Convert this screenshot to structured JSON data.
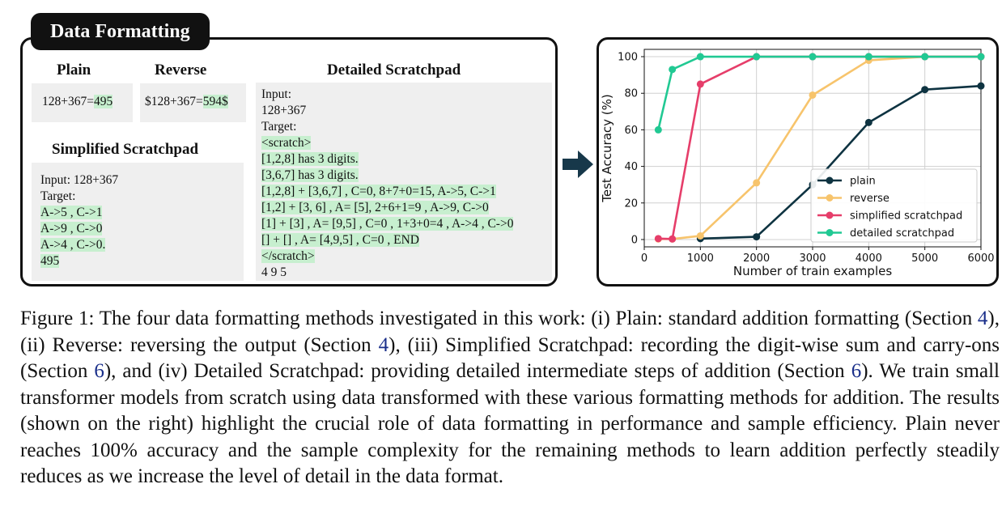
{
  "panel_title": "Data Formatting",
  "formats": {
    "plain": {
      "heading": "Plain",
      "prefix": "128+367=",
      "answer": "495"
    },
    "reverse": {
      "heading": "Reverse",
      "prefix": "$128+367=",
      "answer": "594$"
    },
    "simplified": {
      "heading": "Simplified Scratchpad",
      "lines": [
        "Input: 128+367",
        "Target:"
      ],
      "target_lines": [
        "A->5 , C->1",
        "A->9 , C->0",
        "A->4 , C->0.",
        "495"
      ]
    },
    "detailed": {
      "heading": "Detailed Scratchpad",
      "lines": [
        "Input:",
        "128+367",
        "Target:"
      ],
      "target_lines": [
        "<scratch>",
        "[1,2,8] has 3 digits.",
        "[3,6,7] has 3 digits.",
        "[1,2,8] + [3,6,7] , C=0, 8+7+0=15, A->5, C->1",
        "[1,2] + [3, 6] , A= [5], 2+6+1=9 , A->9, C->0",
        "[1] + [3] , A= [9,5] , C=0 , 1+3+0=4 , A->4 , C->0",
        "[] + [] , A= [4,9,5] , C=0 , END",
        "</scratch>"
      ],
      "final": "4 9 5"
    }
  },
  "chart_data": {
    "type": "line",
    "xlabel": "Number of train examples",
    "ylabel": "Test Accuracy (%)",
    "xlim": [
      0,
      6000
    ],
    "ylim": [
      -4,
      104
    ],
    "xticks": [
      0,
      1000,
      2000,
      3000,
      4000,
      5000,
      6000
    ],
    "yticks": [
      0,
      20,
      40,
      60,
      80,
      100
    ],
    "grid": true,
    "legend_position": "lower-right",
    "series": [
      {
        "name": "plain",
        "color": "#0e3341",
        "markers": true,
        "x": [
          1000,
          2000,
          3000,
          4000,
          5000,
          6000
        ],
        "y": [
          0.5,
          1.5,
          30,
          64,
          82,
          84
        ]
      },
      {
        "name": "reverse",
        "color": "#f7c46c",
        "markers": true,
        "x": [
          250,
          500,
          1000,
          2000,
          3000,
          4000,
          5000,
          6000
        ],
        "y": [
          0.3,
          0.3,
          2,
          31,
          79,
          98,
          100,
          100
        ]
      },
      {
        "name": "simplified scratchpad",
        "color": "#e63e6a",
        "markers": true,
        "x": [
          250,
          500,
          1000,
          2000,
          3000,
          4000,
          5000,
          6000
        ],
        "y": [
          0.5,
          0.3,
          85,
          100,
          100,
          100,
          100,
          100
        ]
      },
      {
        "name": "detailed scratchpad",
        "color": "#21c993",
        "markers": true,
        "x": [
          250,
          500,
          1000,
          2000,
          3000,
          4000,
          5000,
          6000
        ],
        "y": [
          60,
          93,
          100,
          100,
          100,
          100,
          100,
          100
        ]
      }
    ]
  },
  "caption": {
    "p1": "Figure 1: The four data formatting methods investigated in this work: (i) Plain: standard addition formatting (Section ",
    "r1": "4",
    "p2": "), (ii) Reverse: reversing the output (Section ",
    "r2": "4",
    "p3": "), (iii) Simplified Scratchpad: recording the digit-wise sum and carry-ons (Section ",
    "r3": "6",
    "p4": "), and (iv) Detailed Scratchpad: providing detailed intermediate steps of addition (Section ",
    "r4": "6",
    "p5": "). We train small transformer models from scratch using data transformed with these various formatting methods for addition. The results (shown on the right) highlight the crucial role of data formatting in performance and sample efficiency. Plain never reaches 100% accuracy and the sample complexity for the remaining methods to learn addition perfectly steadily reduces as we increase the level of detail in the data format."
  }
}
